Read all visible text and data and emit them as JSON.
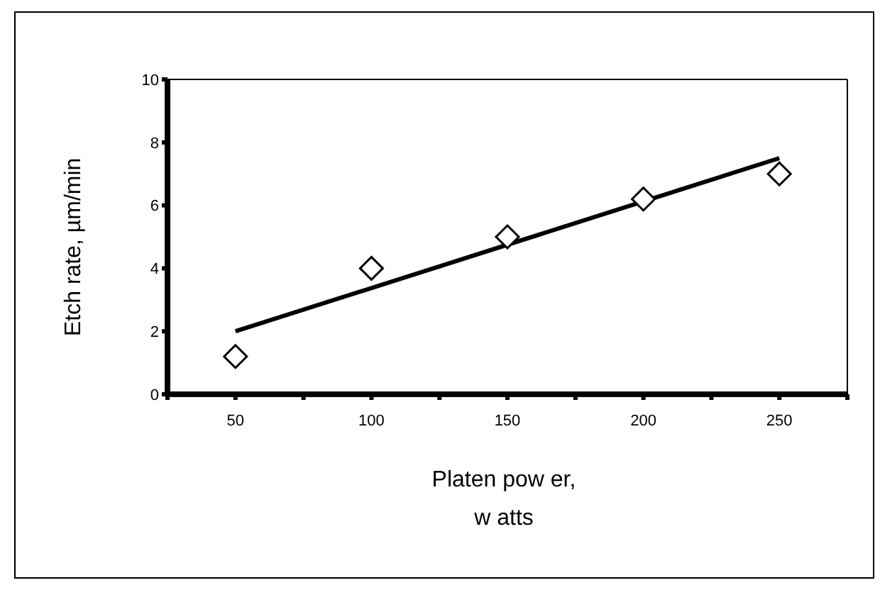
{
  "chart_data": {
    "type": "scatter",
    "xlabel": "Platen pow er, w atts",
    "ylabel": "Etch rate, µm/min",
    "xlim": [
      25,
      275
    ],
    "xticks": [
      {
        "value": 25,
        "label": null
      },
      50,
      {
        "value": 75,
        "label": null
      },
      100,
      {
        "value": 125,
        "label": null
      },
      150,
      {
        "value": 175,
        "label": null
      },
      200,
      {
        "value": 225,
        "label": null
      },
      250,
      {
        "value": 275,
        "label": null
      }
    ],
    "ylim": [
      0,
      10
    ],
    "yticks": [
      0,
      2,
      4,
      6,
      8,
      10
    ],
    "marker": "diamond",
    "grid": false,
    "legend": false,
    "series": [
      {
        "color": "#000000",
        "x": [
          50,
          100,
          150,
          200,
          250
        ],
        "values": [
          1.2,
          4.0,
          5.0,
          6.2,
          7.0
        ]
      },
      {
        "type": "line",
        "color": "#000000",
        "x": [
          50,
          250
        ],
        "values": [
          2.0,
          7.5
        ],
        "marker": "none"
      }
    ]
  }
}
